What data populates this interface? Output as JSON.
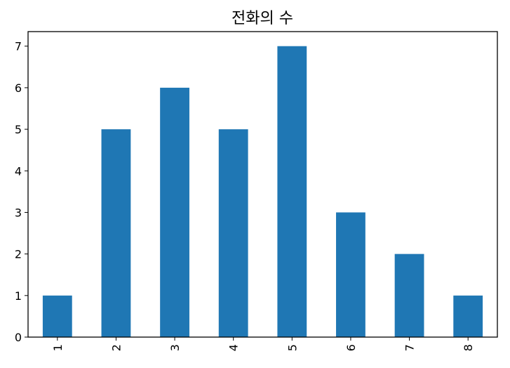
{
  "chart_data": {
    "type": "bar",
    "title": "전화의 수",
    "xlabel": "",
    "ylabel": "",
    "categories": [
      "1",
      "2",
      "3",
      "4",
      "5",
      "6",
      "7",
      "8"
    ],
    "values": [
      1,
      5,
      6,
      5,
      7,
      3,
      2,
      1
    ],
    "ylim": [
      0,
      7.35
    ],
    "yticks": [
      "0",
      "1",
      "2",
      "3",
      "4",
      "5",
      "6",
      "7"
    ],
    "bar_color": "#1f77b4",
    "grid": false,
    "legend": "none",
    "xtick_rotation": "vertical"
  }
}
